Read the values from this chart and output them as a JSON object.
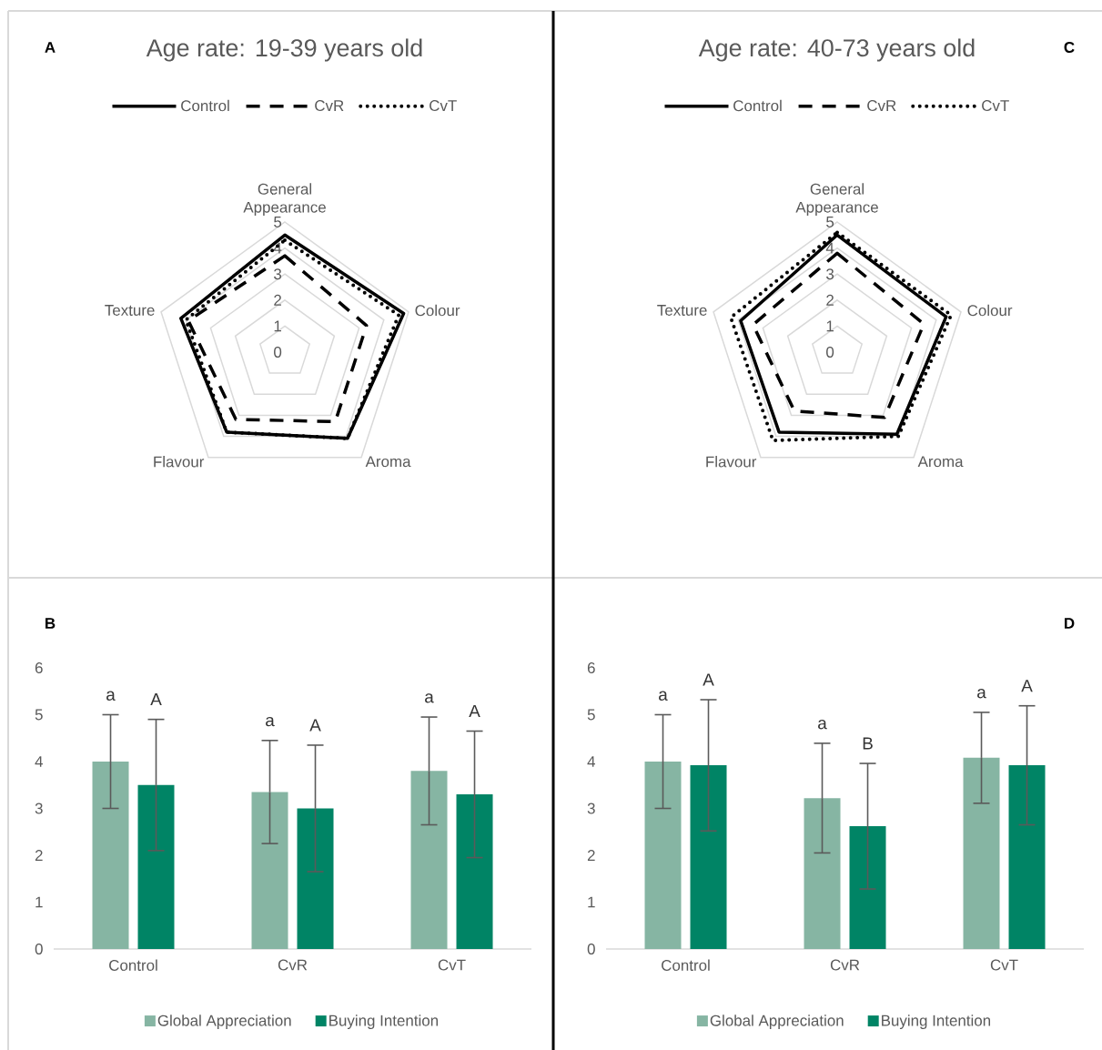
{
  "chart_data": [
    {
      "type": "radar",
      "title": "Age rate: 19-39 years old",
      "annotations": [
        "A"
      ],
      "categories": [
        "General Appearance",
        "Colour",
        "Aroma",
        "Flavour",
        "Texture"
      ],
      "ylim": [
        0,
        5
      ],
      "yticks": [
        0,
        1,
        2,
        3,
        4,
        5
      ],
      "grid": true,
      "legend": "top",
      "series": [
        {
          "name": "Control",
          "color": "#000000",
          "line_style": "solid",
          "values": [
            4.5,
            4.8,
            4.1,
            3.8,
            4.2
          ]
        },
        {
          "name": "CvR",
          "color": "#000000",
          "line_style": "dashed",
          "values": [
            3.7,
            3.3,
            3.3,
            3.2,
            3.9
          ]
        },
        {
          "name": "CvT",
          "color": "#000000",
          "line_style": "dotted",
          "values": [
            4.3,
            4.6,
            4.1,
            3.8,
            4.0
          ]
        }
      ]
    },
    {
      "type": "radar",
      "title": "Age rate: 40-73 years old",
      "annotations": [
        "C"
      ],
      "categories": [
        "General Appearance",
        "Colour",
        "Aroma",
        "Flavour",
        "Texture"
      ],
      "ylim": [
        0,
        5
      ],
      "yticks": [
        0,
        1,
        2,
        3,
        4,
        5
      ],
      "grid": true,
      "legend": "top",
      "series": [
        {
          "name": "Control",
          "color": "#000000",
          "line_style": "solid",
          "values": [
            4.5,
            4.4,
            3.9,
            3.8,
            3.9
          ]
        },
        {
          "name": "CvR",
          "color": "#000000",
          "line_style": "dashed",
          "values": [
            3.8,
            3.5,
            3.1,
            2.8,
            3.4
          ]
        },
        {
          "name": "CvT",
          "color": "#000000",
          "line_style": "dotted",
          "values": [
            4.6,
            4.6,
            4.0,
            4.2,
            4.3
          ]
        }
      ]
    },
    {
      "type": "bar",
      "categories": [
        "Control",
        "CvR",
        "CvT"
      ],
      "ylim": [
        0,
        6
      ],
      "yticks": [
        0,
        1,
        2,
        3,
        4,
        5,
        6
      ],
      "legend": "bottom",
      "annotations": [
        "B",
        "a",
        "A",
        "a",
        "A",
        "a",
        "A"
      ],
      "series": [
        {
          "name": "Global Appreciation",
          "color": "#86b5a3",
          "values": [
            4.0,
            3.35,
            3.8
          ],
          "errors": [
            1.0,
            1.1,
            1.15
          ]
        },
        {
          "name": "Buying Intention",
          "color": "#008465",
          "values": [
            3.5,
            3.0,
            3.3
          ],
          "errors": [
            1.4,
            1.35,
            1.35
          ]
        }
      ]
    },
    {
      "type": "bar",
      "categories": [
        "Control",
        "CvR",
        "CvT"
      ],
      "ylim": [
        0,
        6
      ],
      "yticks": [
        0,
        1,
        2,
        3,
        4,
        5,
        6
      ],
      "legend": "bottom",
      "annotations": [
        "D",
        "a",
        "A",
        "a",
        "B",
        "a",
        "A"
      ],
      "series": [
        {
          "name": "Global Appreciation",
          "color": "#86b5a3",
          "values": [
            4.0,
            3.22,
            4.08
          ],
          "errors": [
            1.0,
            1.17,
            0.97
          ]
        },
        {
          "name": "Buying Intention",
          "color": "#008465",
          "values": [
            3.92,
            2.62,
            3.92
          ],
          "errors": [
            1.4,
            1.34,
            1.27
          ]
        }
      ]
    }
  ]
}
